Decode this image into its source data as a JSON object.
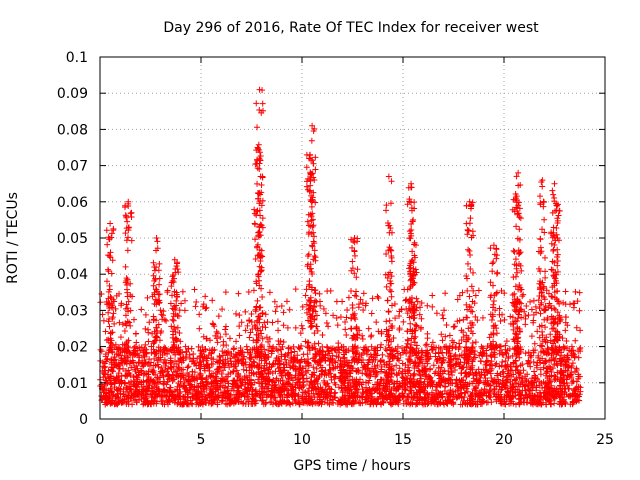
{
  "chart_data": {
    "type": "scatter",
    "title": "Day 296 of 2016, Rate Of TEC Index for receiver west",
    "xlabel": "GPS time / hours",
    "ylabel": "ROTI / TECUs",
    "xlim": [
      0,
      25
    ],
    "ylim": [
      0,
      0.1
    ],
    "xticks": [
      0,
      5,
      10,
      15,
      20,
      25
    ],
    "xtick_labels": [
      "0",
      "5",
      "10",
      "15",
      "20",
      "25"
    ],
    "yticks": [
      0,
      0.01,
      0.02,
      0.03,
      0.04,
      0.05,
      0.06,
      0.07,
      0.08,
      0.09,
      0.1
    ],
    "ytick_labels": [
      "0",
      "0.01",
      "0.02",
      "0.03",
      "0.04",
      "0.05",
      "0.06",
      "0.07",
      "0.08",
      "0.09",
      "0.1"
    ],
    "grid": true,
    "marker": "+",
    "marker_color": "#ff0000",
    "x_data_range": [
      0,
      23.8
    ],
    "baseline_band": [
      0.006,
      0.018
    ],
    "typical_upper": 0.03,
    "spikes": [
      {
        "x": 0.5,
        "y": 0.054
      },
      {
        "x": 1.4,
        "y": 0.06
      },
      {
        "x": 2.8,
        "y": 0.05
      },
      {
        "x": 3.7,
        "y": 0.044
      },
      {
        "x": 7.9,
        "y": 0.091
      },
      {
        "x": 7.8,
        "y": 0.075
      },
      {
        "x": 10.5,
        "y": 0.081
      },
      {
        "x": 10.4,
        "y": 0.073
      },
      {
        "x": 12.6,
        "y": 0.05
      },
      {
        "x": 14.3,
        "y": 0.067
      },
      {
        "x": 15.4,
        "y": 0.065
      },
      {
        "x": 15.5,
        "y": 0.055
      },
      {
        "x": 18.3,
        "y": 0.06
      },
      {
        "x": 19.5,
        "y": 0.048
      },
      {
        "x": 20.7,
        "y": 0.068
      },
      {
        "x": 20.6,
        "y": 0.061
      },
      {
        "x": 21.9,
        "y": 0.066
      },
      {
        "x": 22.5,
        "y": 0.065
      },
      {
        "x": 22.6,
        "y": 0.059
      }
    ]
  }
}
